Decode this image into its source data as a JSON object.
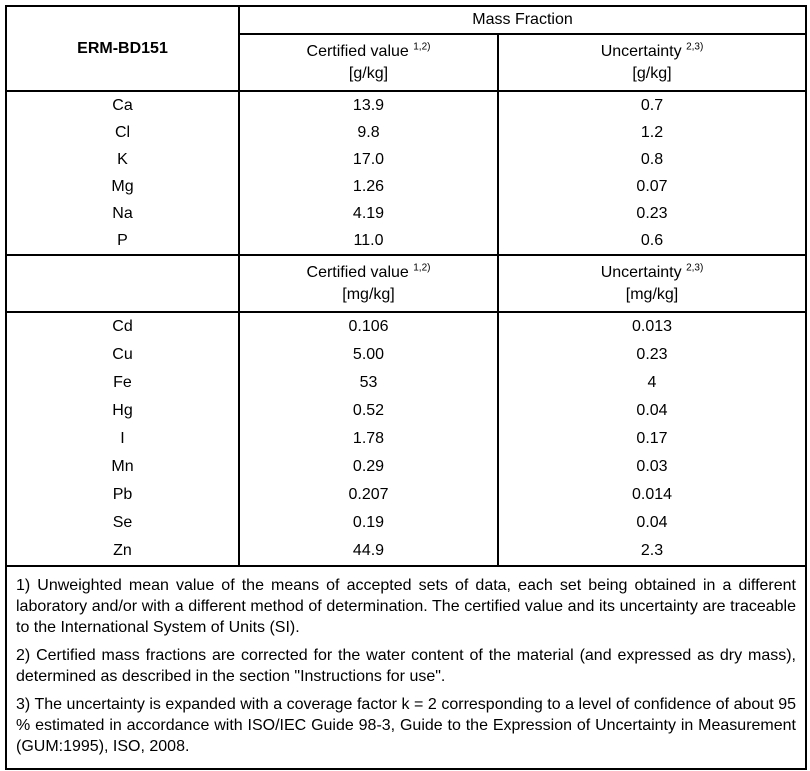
{
  "table": {
    "corner_label": "ERM-BD151",
    "group_header": "Mass Fraction",
    "sections": [
      {
        "certified_label": "Certified value",
        "certified_sup": "1,2)",
        "uncertainty_label": "Uncertainty",
        "uncertainty_sup": "2,3)",
        "unit": "[g/kg]",
        "rows": [
          {
            "element": "Ca",
            "certified": "13.9",
            "uncertainty": "0.7"
          },
          {
            "element": "Cl",
            "certified": "9.8",
            "uncertainty": "1.2"
          },
          {
            "element": "K",
            "certified": "17.0",
            "uncertainty": "0.8"
          },
          {
            "element": "Mg",
            "certified": "1.26",
            "uncertainty": "0.07"
          },
          {
            "element": "Na",
            "certified": "4.19",
            "uncertainty": "0.23"
          },
          {
            "element": "P",
            "certified": "11.0",
            "uncertainty": "0.6"
          }
        ]
      },
      {
        "certified_label": "Certified value",
        "certified_sup": "1,2)",
        "uncertainty_label": "Uncertainty",
        "uncertainty_sup": "2,3)",
        "unit": "[mg/kg]",
        "rows": [
          {
            "element": "Cd",
            "certified": "0.106",
            "uncertainty": "0.013"
          },
          {
            "element": "Cu",
            "certified": "5.00",
            "uncertainty": "0.23"
          },
          {
            "element": "Fe",
            "certified": "53",
            "uncertainty": "4"
          },
          {
            "element": "Hg",
            "certified": "0.52",
            "uncertainty": "0.04"
          },
          {
            "element": "I",
            "certified": "1.78",
            "uncertainty": "0.17"
          },
          {
            "element": "Mn",
            "certified": "0.29",
            "uncertainty": "0.03"
          },
          {
            "element": "Pb",
            "certified": "0.207",
            "uncertainty": "0.014"
          },
          {
            "element": "Se",
            "certified": "0.19",
            "uncertainty": "0.04"
          },
          {
            "element": "Zn",
            "certified": "44.9",
            "uncertainty": "2.3"
          }
        ]
      }
    ],
    "footnotes": [
      "1) Unweighted mean value of the means of accepted sets of data, each set being obtained in a different laboratory and/or with a different method of determination. The certified value and its uncertainty are traceable to the International System of Units (SI).",
      "2) Certified mass fractions are corrected for the water content of the material (and expressed as dry mass), determined as described in the section \"Instructions for use\".",
      "3) The uncertainty is expanded with a coverage factor k = 2 corresponding to a level of confidence of about 95 % estimated in accordance with ISO/IEC Guide 98-3, Guide to the Expression of Uncertainty in Measurement (GUM:1995), ISO, 2008."
    ]
  }
}
